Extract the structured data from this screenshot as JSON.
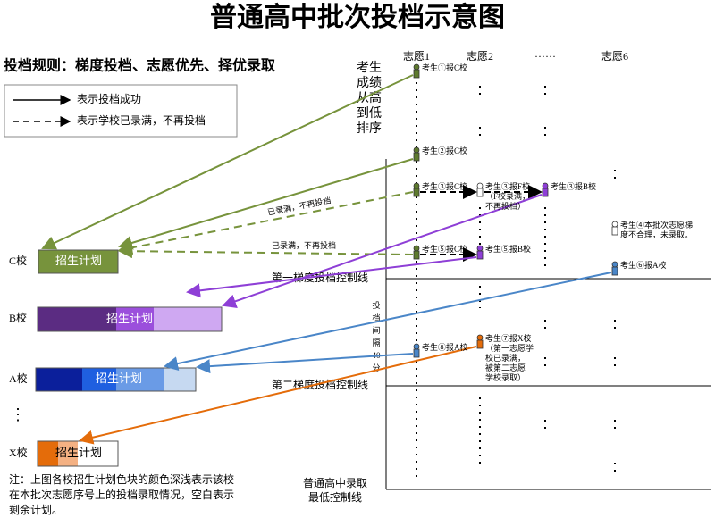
{
  "header": {
    "title": "普通高中批次投档示意图",
    "rule": "投档规则：梯度投档、志愿优先、择优录取"
  },
  "legend": {
    "items": [
      "表示投档成功",
      "表示学校已录满，不再投档"
    ]
  },
  "columns": [
    "志愿1",
    "志愿2",
    "······",
    "志愿6"
  ],
  "y_label": [
    "考生",
    "成绩",
    "从高",
    "到低",
    "排序"
  ],
  "schools": [
    {
      "label": "C校",
      "plan": "招生计划"
    },
    {
      "label": "B校",
      "plan": "招生计划"
    },
    {
      "label": "A校",
      "plan": "招生计划"
    },
    {
      "label": "⋮"
    },
    {
      "label": "X校",
      "plan": "招生计划"
    }
  ],
  "students": [
    {
      "lines": [
        "考生①报C校"
      ]
    },
    {
      "lines": [
        "考生②报C校"
      ]
    },
    {
      "lines": [
        "考生③报C校"
      ]
    },
    {
      "lines": [
        "考生③报F校",
        "（F校录满，",
        "不再投档）"
      ]
    },
    {
      "lines": [
        "考生③报B校"
      ]
    },
    {
      "lines": [
        "考生④本批次志愿梯",
        "度不合理，未录取。"
      ]
    },
    {
      "lines": [
        "考生⑤报C校"
      ]
    },
    {
      "lines": [
        "考生⑤报B校"
      ]
    },
    {
      "lines": [
        "考生⑥报A校"
      ]
    },
    {
      "lines": [
        "考生⑦报X校",
        "（第一志愿学",
        "校已录满，",
        "被第二志愿",
        "学校录取）"
      ]
    },
    {
      "lines": [
        "考生⑧报A校"
      ]
    }
  ],
  "full_notes": [
    "已录满，不再投档",
    "已录满，不再投档"
  ],
  "control_lines": {
    "first": "第一梯度投档控制线",
    "second": "第二梯度投档控制线",
    "interval": [
      "投",
      "档",
      "间",
      "隔",
      "40",
      "分"
    ],
    "lowest": [
      "普通高中录取",
      "最低控制线"
    ]
  },
  "note": [
    "注：上图各校招生计划色块的颜色深浅表示该校",
    "在本批次志愿序号上的投档录取情况，空白表示",
    "剩余计划。"
  ]
}
